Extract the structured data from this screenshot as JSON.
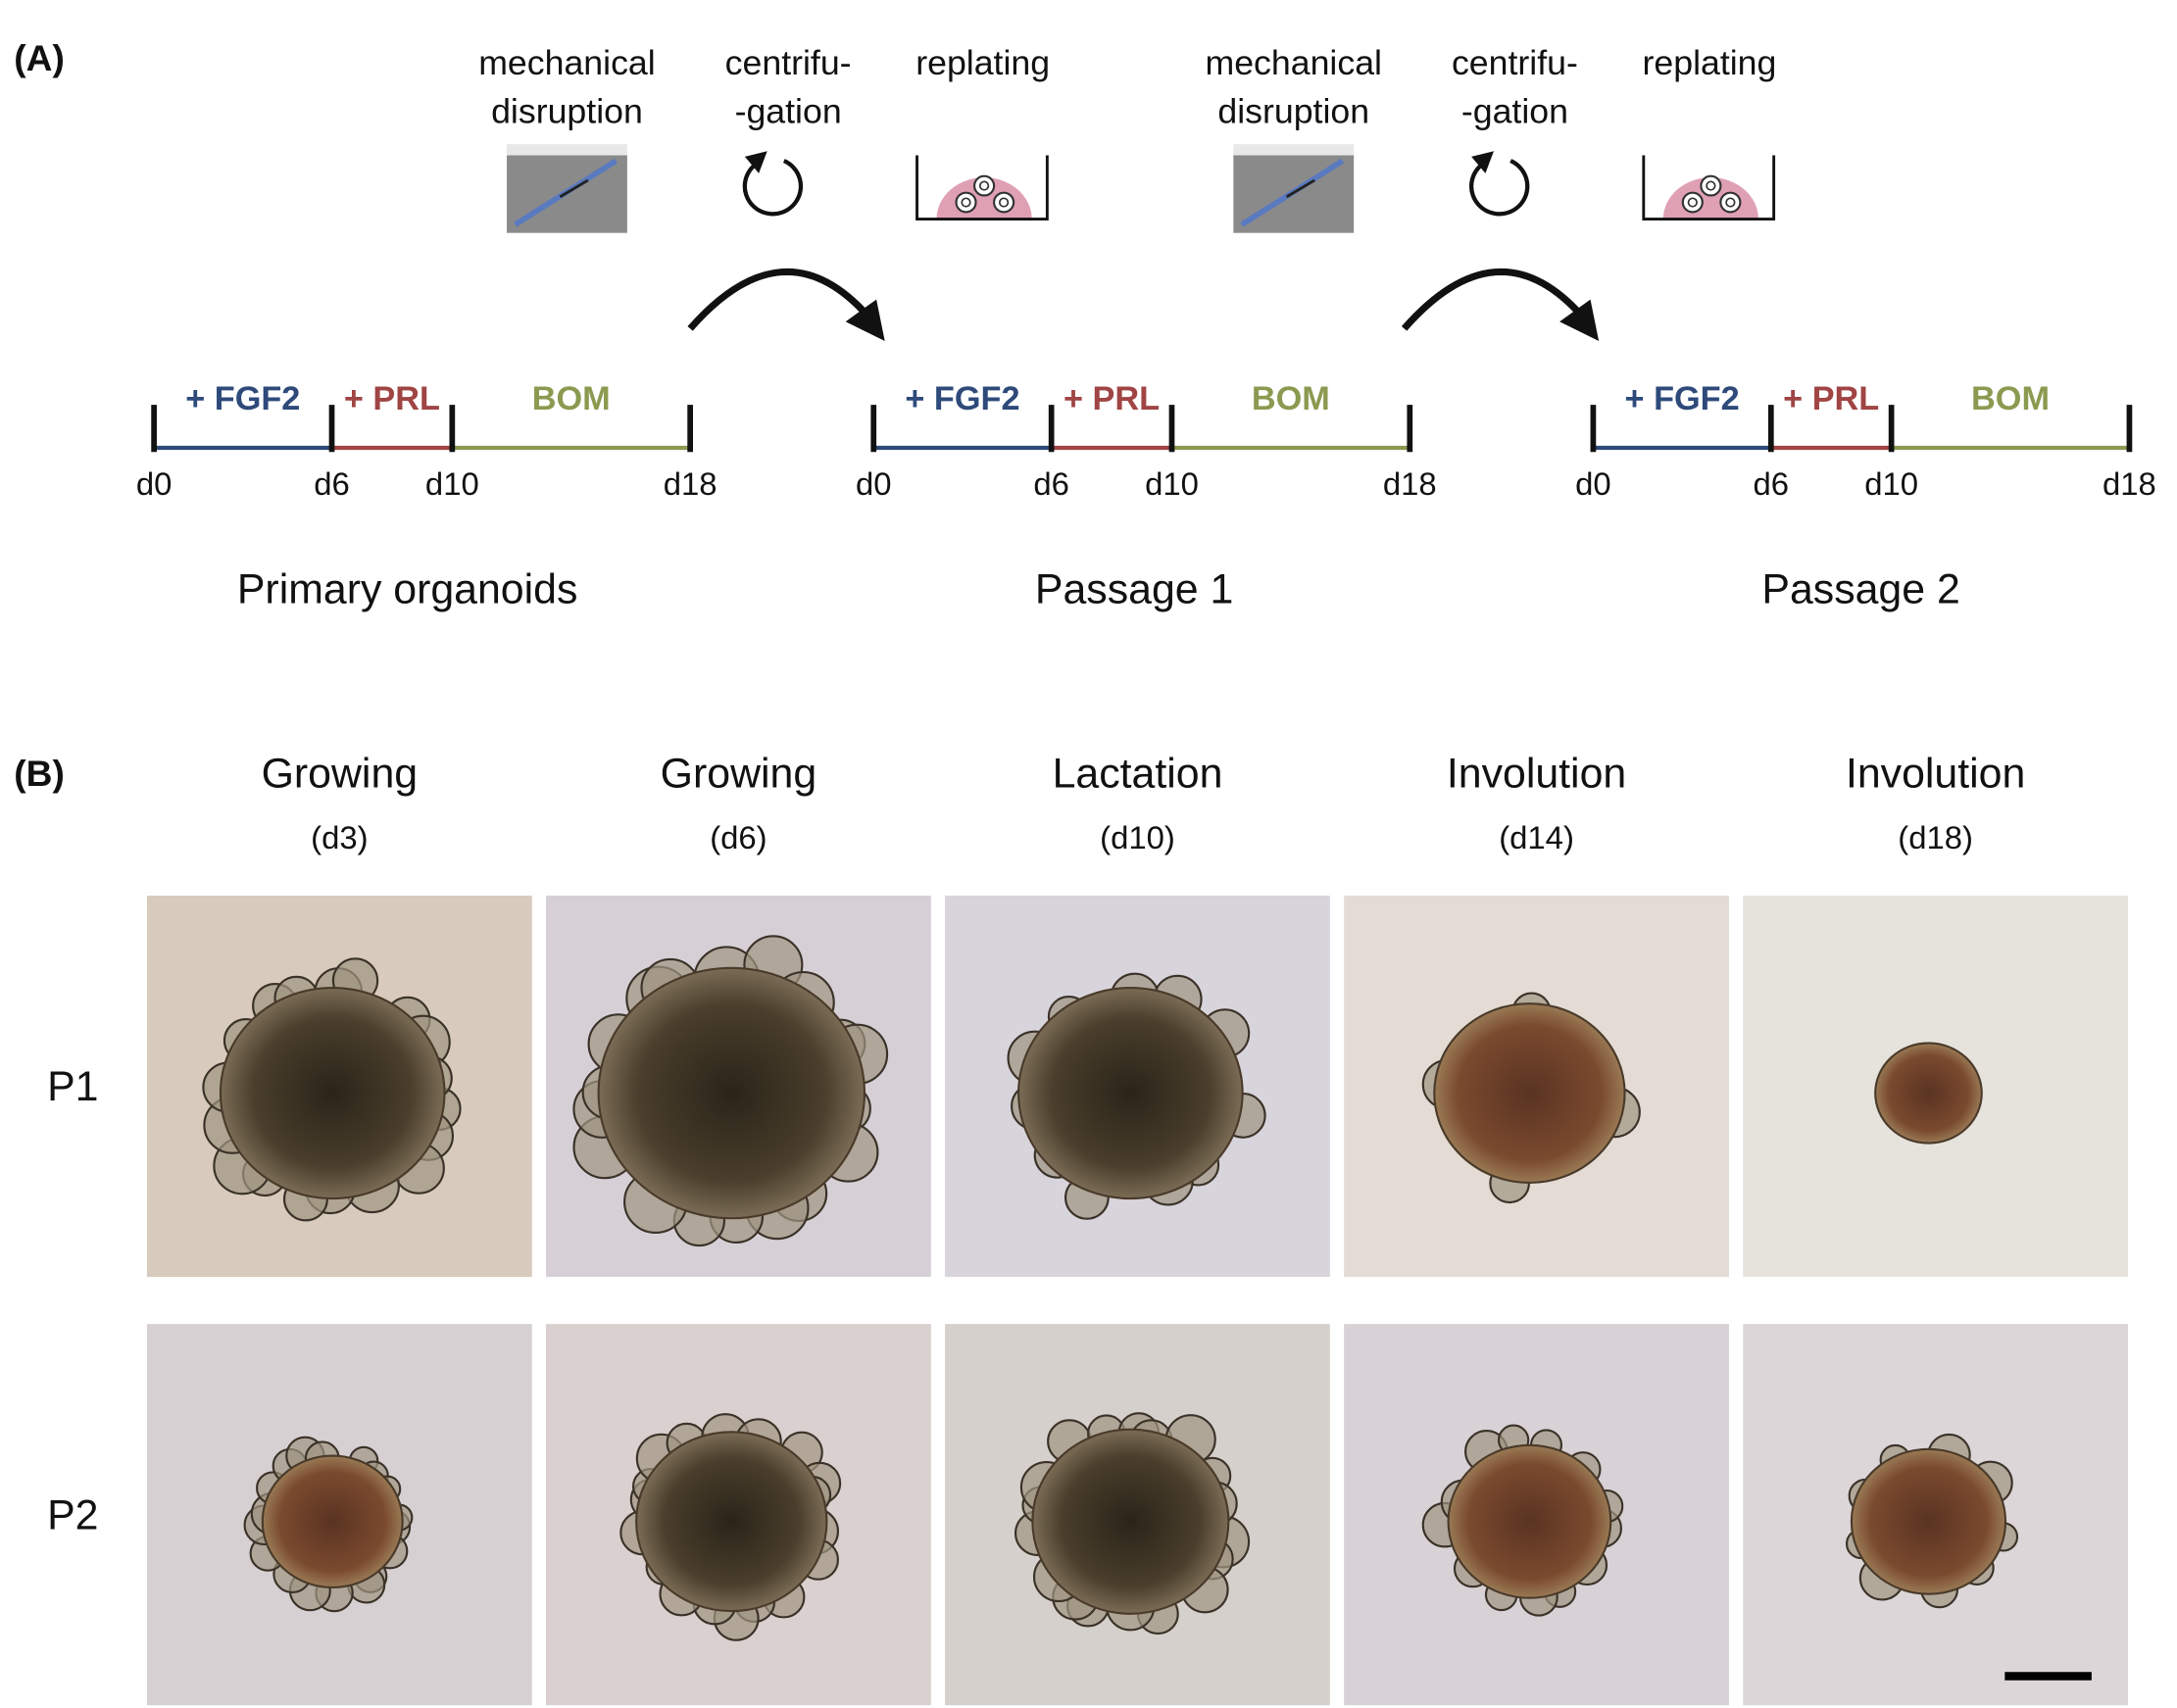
{
  "panel_a": {
    "label": "(A)",
    "transitions": [
      {
        "steps": [
          {
            "lines": [
              "mechanical",
              "disruption"
            ]
          },
          {
            "lines": [
              "centrifu-",
              "-gation"
            ]
          },
          {
            "lines": [
              "replating"
            ]
          }
        ]
      },
      {
        "steps": [
          {
            "lines": [
              "mechanical",
              "disruption"
            ]
          },
          {
            "lines": [
              "centrifu-",
              "-gation"
            ]
          },
          {
            "lines": [
              "replating"
            ]
          }
        ]
      }
    ],
    "timelines": [
      {
        "segments": [
          "+ FGF2",
          "+ PRL",
          "BOM"
        ],
        "days": [
          "d0",
          "d6",
          "d10",
          "d18"
        ],
        "caption": "Primary organoids"
      },
      {
        "segments": [
          "+ FGF2",
          "+ PRL",
          "BOM"
        ],
        "days": [
          "d0",
          "d6",
          "d10",
          "d18"
        ],
        "caption": "Passage 1"
      },
      {
        "segments": [
          "+ FGF2",
          "+ PRL",
          "BOM"
        ],
        "days": [
          "d0",
          "d6",
          "d10",
          "d18"
        ],
        "caption": "Passage 2"
      }
    ]
  },
  "panel_b": {
    "label": "(B)",
    "columns": [
      {
        "stage": "Growing",
        "day": "(d3)"
      },
      {
        "stage": "Growing",
        "day": "(d6)"
      },
      {
        "stage": "Lactation",
        "day": "(d10)"
      },
      {
        "stage": "Involution",
        "day": "(d14)"
      },
      {
        "stage": "Involution",
        "day": "(d18)"
      }
    ],
    "rows": [
      "P1",
      "P2"
    ]
  }
}
